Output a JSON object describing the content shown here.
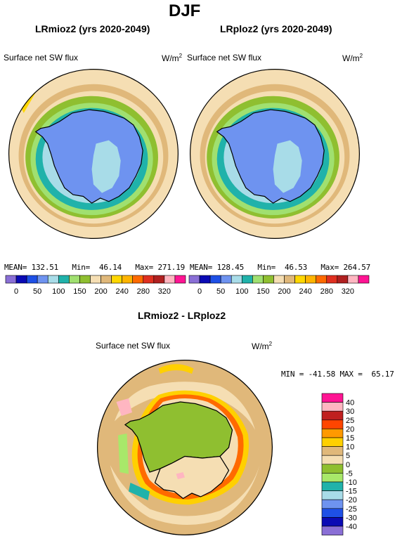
{
  "title": "DJF",
  "panels": [
    {
      "title": "LRmioz2 (yrs 2020-2049)",
      "variable": "Surface net SW flux",
      "units": "W/m",
      "units_sup": "2",
      "stats": {
        "mean_label": "MEAN=",
        "mean": "132.51",
        "min_label": "Min=",
        "min": "46.14",
        "max_label": "Max=",
        "max": "271.19"
      }
    },
    {
      "title": "LRploz2 (yrs 2020-2049)",
      "variable": "Surface net SW flux",
      "units": "W/m",
      "units_sup": "2",
      "stats": {
        "mean_label": "MEAN=",
        "mean": "128.45",
        "min_label": "Min=",
        "min": "46.53",
        "max_label": "Max=",
        "max": "264.57"
      }
    }
  ],
  "top_colorbar": {
    "colors": [
      "#8a6fd6",
      "#0a0ab4",
      "#1e50e6",
      "#6e93f0",
      "#a8dce8",
      "#20b2aa",
      "#a0e070",
      "#8fbf30",
      "#f5deb3",
      "#e0b87a",
      "#ffd700",
      "#ffb400",
      "#ff6a00",
      "#e03020",
      "#b02020",
      "#ffb6c1",
      "#ff1493"
    ],
    "labels": [
      "0",
      "50",
      "100",
      "150",
      "200",
      "240",
      "280",
      "320"
    ]
  },
  "diff": {
    "title": "LRmioz2 - LRploz2",
    "variable": "Surface net SW flux",
    "units": "W/m",
    "units_sup": "2",
    "stats": {
      "min_label": "MIN =",
      "min": "-41.58",
      "max_label": "MAX =",
      "max": "65.17"
    },
    "colorbar": {
      "colors": [
        "#ff1493",
        "#ffb6c1",
        "#c02020",
        "#ff4500",
        "#ff9900",
        "#ffd000",
        "#e0b87a",
        "#f5deb3",
        "#8fbf30",
        "#a8e86a",
        "#20b2aa",
        "#a8dce8",
        "#6e93f0",
        "#1e50e6",
        "#0a0ab4",
        "#8a6fd6"
      ],
      "labels": [
        "40",
        "30",
        "25",
        "20",
        "15",
        "10",
        "5",
        "0",
        "-5",
        "-10",
        "-15",
        "-20",
        "-25",
        "-30",
        "-40"
      ]
    }
  }
}
